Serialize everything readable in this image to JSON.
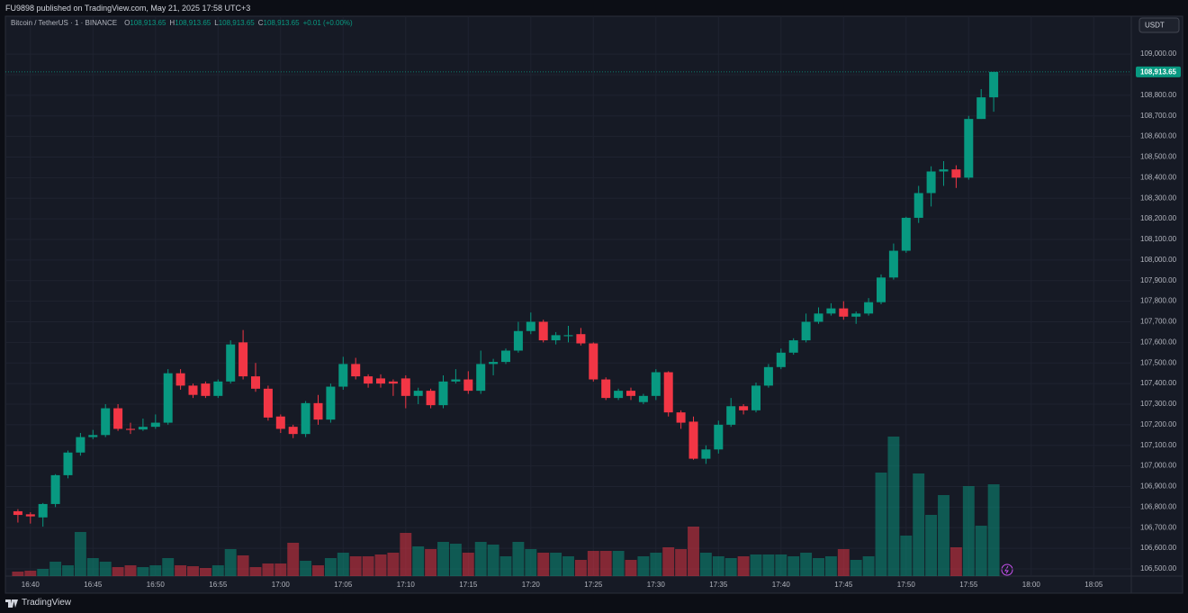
{
  "header": "FU9898 published on TradingView.com, May 21, 2025 17:58 UTC+3",
  "footer": "TradingView",
  "chart_data": {
    "type": "candlestick",
    "legend": {
      "symbol": "Bitcoin / TetherUS · 1 · BINANCE",
      "items": [
        {
          "key": "O",
          "value": "108,913.65"
        },
        {
          "key": "H",
          "value": "108,913.65"
        },
        {
          "key": "L",
          "value": "108,913.65"
        },
        {
          "key": "C",
          "value": "108,913.65"
        }
      ],
      "change": "+0.01 (+0.00%)"
    },
    "currency": "USDT",
    "up_color": "#089981",
    "down_color": "#f23645",
    "grid": true,
    "x": [
      "16:39",
      "16:40",
      "16:41",
      "16:42",
      "16:43",
      "16:44",
      "16:45",
      "16:46",
      "16:47",
      "16:48",
      "16:49",
      "16:50",
      "16:51",
      "16:52",
      "16:53",
      "16:54",
      "16:55",
      "16:56",
      "16:57",
      "16:58",
      "16:59",
      "17:00",
      "17:01",
      "17:02",
      "17:03",
      "17:04",
      "17:05",
      "17:06",
      "17:07",
      "17:08",
      "17:09",
      "17:10",
      "17:11",
      "17:12",
      "17:13",
      "17:14",
      "17:15",
      "17:16",
      "17:17",
      "17:18",
      "17:19",
      "17:20",
      "17:21",
      "17:22",
      "17:23",
      "17:24",
      "17:25",
      "17:26",
      "17:27",
      "17:28",
      "17:29",
      "17:30",
      "17:31",
      "17:32",
      "17:33",
      "17:34",
      "17:35",
      "17:36",
      "17:37",
      "17:38",
      "17:39",
      "17:40",
      "17:41",
      "17:42",
      "17:43",
      "17:44",
      "17:45",
      "17:46",
      "17:47",
      "17:48",
      "17:49",
      "17:50",
      "17:51",
      "17:52",
      "17:53",
      "17:54",
      "17:55",
      "17:56",
      "17:57"
    ],
    "open": [
      106780,
      106765,
      106750,
      106815,
      106955,
      107065,
      107140,
      107150,
      107280,
      107180,
      107177,
      107190,
      107210,
      107450,
      107390,
      107400,
      107340,
      107410,
      107600,
      107435,
      107375,
      107240,
      107190,
      107155,
      107305,
      107225,
      107385,
      107495,
      107435,
      107425,
      107410,
      107425,
      107340,
      107365,
      107295,
      107410,
      107420,
      107365,
      107495,
      107505,
      107560,
      107655,
      107700,
      107610,
      107630,
      107640,
      107595,
      107420,
      107330,
      107365,
      107310,
      107340,
      107455,
      107260,
      107215,
      107035,
      107080,
      107200,
      107290,
      107270,
      107390,
      107480,
      107550,
      107610,
      107700,
      107740,
      107765,
      107725,
      107740,
      107795,
      107915,
      108045,
      108205,
      108325,
      108430,
      108440,
      108400,
      108685,
      108790
    ],
    "high": [
      106790,
      106775,
      106820,
      106960,
      107075,
      107160,
      107175,
      107300,
      107300,
      107210,
      107230,
      107250,
      107470,
      107470,
      107400,
      107410,
      107420,
      107610,
      107660,
      107500,
      107390,
      107250,
      107200,
      107315,
      107345,
      107400,
      107530,
      107525,
      107445,
      107445,
      107420,
      107440,
      107380,
      107375,
      107440,
      107470,
      107460,
      107560,
      107520,
      107570,
      107700,
      107745,
      107710,
      107650,
      107680,
      107670,
      107600,
      107430,
      107375,
      107380,
      107350,
      107470,
      107460,
      107270,
      107240,
      107100,
      107220,
      107330,
      107300,
      107405,
      107495,
      107570,
      107620,
      107740,
      107770,
      107790,
      107800,
      107750,
      107815,
      107930,
      108080,
      108210,
      108360,
      108455,
      108480,
      108460,
      108700,
      108830,
      108913.65
    ],
    "low": [
      106725,
      106720,
      106705,
      106800,
      106940,
      107050,
      107130,
      107140,
      107170,
      107155,
      107170,
      107180,
      107200,
      107370,
      107330,
      107330,
      107330,
      107400,
      107420,
      107360,
      107220,
      107160,
      107135,
      107140,
      107200,
      107210,
      107370,
      107420,
      107380,
      107380,
      107340,
      107280,
      107300,
      107280,
      107280,
      107400,
      107350,
      107350,
      107440,
      107495,
      107550,
      107640,
      107600,
      107590,
      107600,
      107585,
      107410,
      107320,
      107320,
      107320,
      107300,
      107320,
      107240,
      107180,
      107030,
      107010,
      107060,
      107190,
      107250,
      107260,
      107380,
      107470,
      107540,
      107600,
      107690,
      107730,
      107710,
      107690,
      107730,
      107785,
      107905,
      108035,
      108180,
      108260,
      108360,
      108350,
      108390,
      108685,
      108720
    ],
    "close": [
      106762,
      106755,
      106815,
      106955,
      107065,
      107140,
      107150,
      107280,
      107180,
      107175,
      107190,
      107210,
      107450,
      107390,
      107345,
      107340,
      107410,
      107590,
      107435,
      107375,
      107235,
      107180,
      107155,
      107305,
      107225,
      107385,
      107495,
      107435,
      107400,
      107400,
      107400,
      107340,
      107365,
      107295,
      107410,
      107420,
      107365,
      107495,
      107505,
      107560,
      107655,
      107700,
      107610,
      107635,
      107635,
      107595,
      107420,
      107330,
      107365,
      107340,
      107340,
      107455,
      107260,
      107210,
      107035,
      107080,
      107200,
      107290,
      107270,
      107390,
      107480,
      107550,
      107610,
      107700,
      107740,
      107765,
      107725,
      107740,
      107795,
      107915,
      108045,
      108205,
      108325,
      108430,
      108440,
      108400,
      108685,
      108790,
      108913.65
    ],
    "volume": [
      5,
      6,
      8,
      16,
      12,
      49,
      20,
      16,
      10,
      12,
      10,
      12,
      20,
      12,
      11,
      9,
      12,
      30,
      23,
      10,
      14,
      14,
      37,
      17,
      12,
      20,
      26,
      22,
      22,
      24,
      26,
      48,
      33,
      30,
      38,
      36,
      26,
      38,
      35,
      22,
      38,
      30,
      26,
      26,
      22,
      18,
      28,
      28,
      28,
      18,
      22,
      26,
      32,
      30,
      55,
      26,
      22,
      20,
      22,
      24,
      24,
      24,
      22,
      26,
      20,
      22,
      30,
      18,
      22,
      115,
      155,
      45,
      114,
      68,
      90,
      32,
      100,
      56,
      102
    ],
    "xlim": [
      "16:38",
      "18:08"
    ],
    "xticks": [
      "16:40",
      "16:45",
      "16:50",
      "16:55",
      "17:00",
      "17:05",
      "17:10",
      "17:15",
      "17:20",
      "17:25",
      "17:30",
      "17:35",
      "17:40",
      "17:45",
      "17:50",
      "17:55",
      "18:00",
      "18:05"
    ],
    "ylim": [
      106465,
      109184
    ],
    "yticks": [
      {
        "value": 106500,
        "label": "106,500.00"
      },
      {
        "value": 106600,
        "label": "106,600.00"
      },
      {
        "value": 106700,
        "label": "106,700.00"
      },
      {
        "value": 106800,
        "label": "106,800.00"
      },
      {
        "value": 106900,
        "label": "106,900.00"
      },
      {
        "value": 107000,
        "label": "107,000.00"
      },
      {
        "value": 107100,
        "label": "107,100.00"
      },
      {
        "value": 107200,
        "label": "107,200.00"
      },
      {
        "value": 107300,
        "label": "107,300.00"
      },
      {
        "value": 107400,
        "label": "107,400.00"
      },
      {
        "value": 107500,
        "label": "107,500.00"
      },
      {
        "value": 107600,
        "label": "107,600.00"
      },
      {
        "value": 107700,
        "label": "107,700.00"
      },
      {
        "value": 107800,
        "label": "107,800.00"
      },
      {
        "value": 107900,
        "label": "107,900.00"
      },
      {
        "value": 108000,
        "label": "108,000.00"
      },
      {
        "value": 108100,
        "label": "108,100.00"
      },
      {
        "value": 108200,
        "label": "108,200.00"
      },
      {
        "value": 108300,
        "label": "108,300.00"
      },
      {
        "value": 108400,
        "label": "108,400.00"
      },
      {
        "value": 108500,
        "label": "108,500.00"
      },
      {
        "value": 108600,
        "label": "108,600.00"
      },
      {
        "value": 108700,
        "label": "108,700.00"
      },
      {
        "value": 108800,
        "label": "108,800.00"
      },
      {
        "value": 108900,
        "label": "108,900.00"
      },
      {
        "value": 109000,
        "label": "109,000.00"
      }
    ],
    "last_price": {
      "value": 108913.65,
      "label": "108,913.65"
    }
  }
}
